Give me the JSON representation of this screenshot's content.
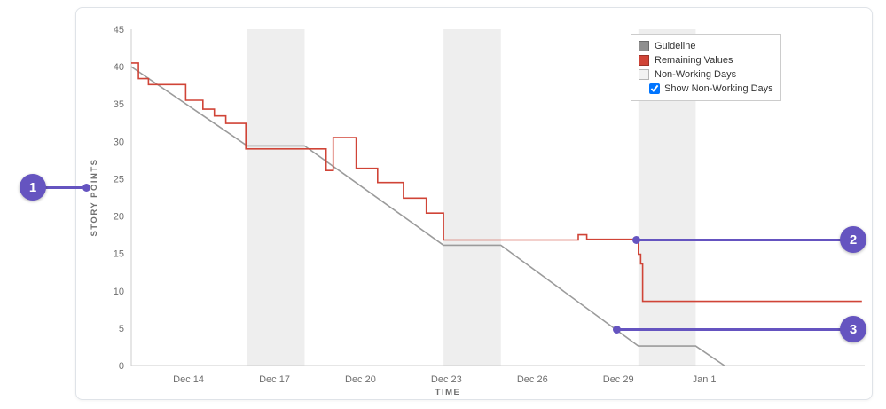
{
  "callouts": [
    "1",
    "2",
    "3"
  ],
  "chart_data": {
    "type": "line",
    "title": "",
    "xlabel": "TIME",
    "ylabel": "STORY POINTS",
    "ylim": [
      0,
      45
    ],
    "y_ticks": [
      0,
      5,
      10,
      15,
      20,
      25,
      30,
      35,
      40,
      45
    ],
    "x_range_days": [
      0,
      25.6
    ],
    "x_ticks": [
      {
        "day": 2,
        "label": "Dec 14"
      },
      {
        "day": 5,
        "label": "Dec 17"
      },
      {
        "day": 8,
        "label": "Dec 20"
      },
      {
        "day": 11,
        "label": "Dec 23"
      },
      {
        "day": 14,
        "label": "Dec 26"
      },
      {
        "day": 17,
        "label": "Dec 29"
      },
      {
        "day": 20,
        "label": "Jan 1"
      }
    ],
    "non_working_bands": [
      [
        4.05,
        6.05
      ],
      [
        10.9,
        12.9
      ],
      [
        17.7,
        19.7
      ]
    ],
    "colors": {
      "band": "#eeeeee",
      "axis": "#cccccc"
    },
    "series": [
      {
        "name": "Guideline",
        "color": "#9b9b9b",
        "interpolation": "linear",
        "points": [
          [
            0,
            40
          ],
          [
            4.05,
            29.4
          ],
          [
            6.05,
            29.4
          ],
          [
            10.9,
            16.1
          ],
          [
            12.9,
            16.1
          ],
          [
            17.7,
            2.6
          ],
          [
            19.7,
            2.6
          ],
          [
            20.7,
            0
          ]
        ]
      },
      {
        "name": "Remaining Values",
        "color": "#d04437",
        "interpolation": "step",
        "points": [
          [
            0,
            40.5
          ],
          [
            0.25,
            38.4
          ],
          [
            0.6,
            37.6
          ],
          [
            1.9,
            35.5
          ],
          [
            2.5,
            34.3
          ],
          [
            2.9,
            33.4
          ],
          [
            3.3,
            32.4
          ],
          [
            4.0,
            29.0
          ],
          [
            6.8,
            26.1
          ],
          [
            7.05,
            30.5
          ],
          [
            7.85,
            26.4
          ],
          [
            8.6,
            24.5
          ],
          [
            9.5,
            22.4
          ],
          [
            10.3,
            20.4
          ],
          [
            10.9,
            16.8
          ],
          [
            15.6,
            17.5
          ],
          [
            15.9,
            16.9
          ],
          [
            17.7,
            14.9
          ],
          [
            17.78,
            13.6
          ],
          [
            17.85,
            8.6
          ],
          [
            25.5,
            8.6
          ]
        ]
      }
    ],
    "legend": {
      "position": "top-right",
      "entries": [
        {
          "label": "Guideline",
          "color": "#8f8f8f"
        },
        {
          "label": "Remaining Values",
          "color": "#d04437"
        },
        {
          "label": "Non-Working Days",
          "color": "#f2f2f2"
        }
      ],
      "checkbox": {
        "label": "Show Non-Working Days",
        "checked": true
      }
    }
  }
}
